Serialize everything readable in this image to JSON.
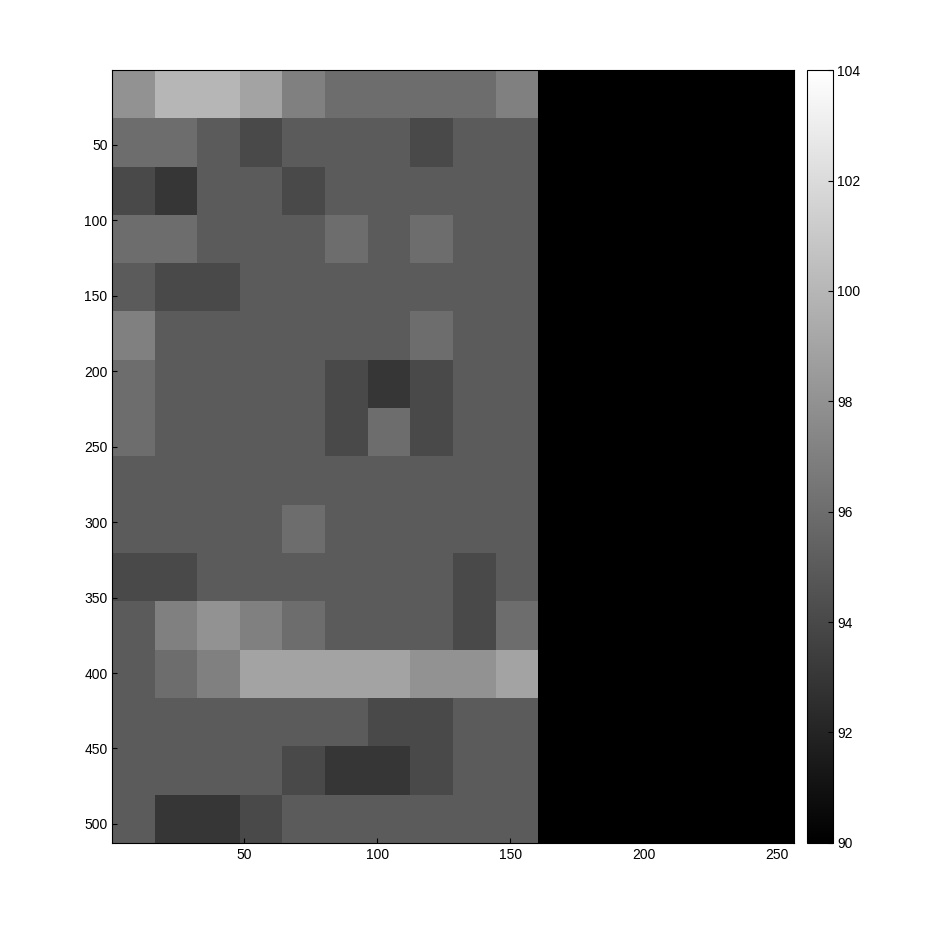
{
  "chart_data": {
    "type": "heatmap",
    "xlim": [
      0.5,
      256.5
    ],
    "ylim": [
      512.5,
      0.5
    ],
    "xticks": [
      50,
      100,
      150,
      200,
      250
    ],
    "yticks": [
      50,
      100,
      150,
      200,
      250,
      300,
      350,
      400,
      450,
      500
    ],
    "color": "gray",
    "colorbar": {
      "range": [
        90,
        104
      ],
      "ticks": [
        90,
        92,
        94,
        96,
        98,
        100,
        102,
        104
      ]
    },
    "cells": [
      [
        98,
        100,
        100,
        99,
        97,
        96,
        96,
        96,
        96,
        97,
        90,
        90,
        90,
        90,
        90,
        90
      ],
      [
        96,
        96,
        95,
        94,
        95,
        95,
        95,
        94,
        95,
        95,
        90,
        90,
        90,
        90,
        90,
        90
      ],
      [
        94,
        93,
        95,
        95,
        94,
        95,
        95,
        95,
        95,
        95,
        90,
        90,
        90,
        90,
        90,
        90
      ],
      [
        96,
        96,
        95,
        95,
        95,
        96,
        95,
        96,
        95,
        95,
        90,
        90,
        90,
        90,
        90,
        90
      ],
      [
        95,
        94,
        94,
        95,
        95,
        95,
        95,
        95,
        95,
        95,
        90,
        90,
        90,
        90,
        90,
        90
      ],
      [
        97,
        95,
        95,
        95,
        95,
        95,
        95,
        96,
        95,
        95,
        90,
        90,
        90,
        90,
        90,
        90
      ],
      [
        96,
        95,
        95,
        95,
        95,
        94,
        93,
        94,
        95,
        95,
        90,
        90,
        90,
        90,
        90,
        90
      ],
      [
        96,
        95,
        95,
        95,
        95,
        94,
        96,
        94,
        95,
        95,
        90,
        90,
        90,
        90,
        90,
        90
      ],
      [
        95,
        95,
        95,
        95,
        95,
        95,
        95,
        95,
        95,
        95,
        90,
        90,
        90,
        90,
        90,
        90
      ],
      [
        95,
        95,
        95,
        95,
        96,
        95,
        95,
        95,
        95,
        95,
        90,
        90,
        90,
        90,
        90,
        90
      ],
      [
        94,
        94,
        95,
        95,
        95,
        95,
        95,
        95,
        94,
        95,
        90,
        90,
        90,
        90,
        90,
        90
      ],
      [
        95,
        97,
        98,
        97,
        96,
        95,
        95,
        95,
        94,
        96,
        90,
        90,
        90,
        90,
        90,
        90
      ],
      [
        95,
        96,
        97,
        99,
        99,
        99,
        99,
        98,
        98,
        99,
        90,
        90,
        90,
        90,
        90,
        90
      ],
      [
        95,
        95,
        95,
        95,
        95,
        95,
        94,
        94,
        95,
        95,
        90,
        90,
        90,
        90,
        90,
        90
      ],
      [
        95,
        95,
        95,
        95,
        94,
        93,
        93,
        94,
        95,
        95,
        90,
        90,
        90,
        90,
        90,
        90
      ],
      [
        95,
        93,
        93,
        94,
        95,
        95,
        95,
        95,
        95,
        95,
        90,
        90,
        90,
        90,
        90,
        90
      ]
    ]
  }
}
